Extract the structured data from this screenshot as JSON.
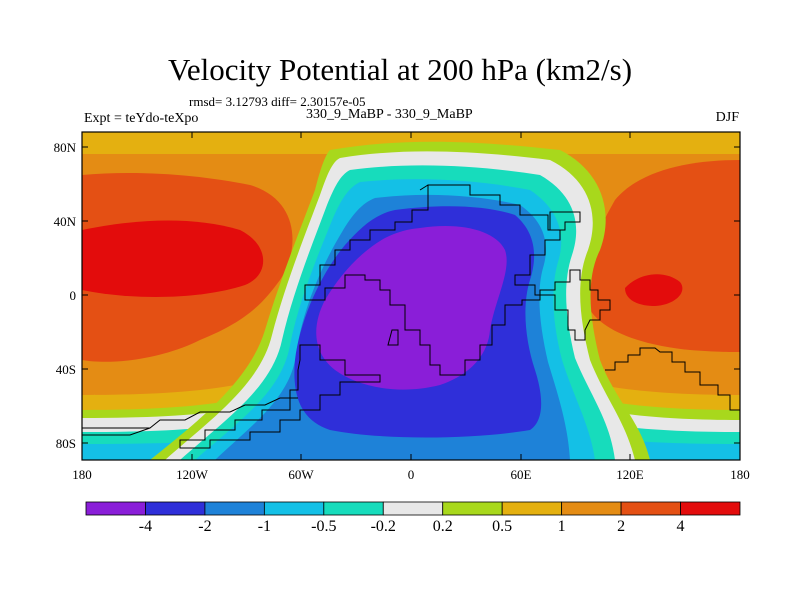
{
  "title": "Velocity Potential at 200 hPa (km2/s)",
  "rmsd_line": "rmsd= 3.12793 diff= 2.30157e-05",
  "left_label": "Expt = teYdo-teXpo",
  "center_label": "330_9_MaBP - 330_9_MaBP",
  "right_label": "DJF",
  "lat_labels": [
    "80N",
    "40N",
    "0",
    "40S",
    "80S"
  ],
  "lon_labels": [
    "180",
    "120W",
    "60W",
    "0",
    "60E",
    "120E",
    "180"
  ],
  "colorbar": {
    "colors": [
      "#8a1ed8",
      "#2f2fd9",
      "#1e82d8",
      "#14c0e6",
      "#17dcbc",
      "#e8e8e8",
      "#a8d81c",
      "#e4b010",
      "#e48c14",
      "#e45014",
      "#e30c0c"
    ],
    "labels": [
      "-4",
      "-2",
      "-1",
      "-0.5",
      "-0.2",
      "0.2",
      "0.5",
      "1",
      "2",
      "4"
    ]
  },
  "colors": {
    "frame": "#000000",
    "coast": "#000000"
  }
}
